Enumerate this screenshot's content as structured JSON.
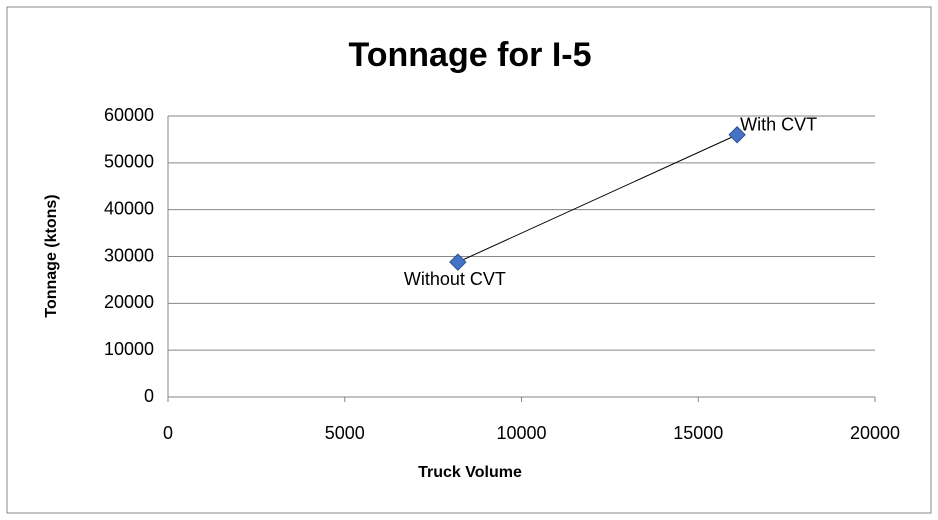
{
  "chart_data": {
    "type": "scatter",
    "title": "Tonnage for I-5",
    "xlabel": "Truck Volume",
    "ylabel": "Tonnage (ktons)",
    "x": [
      8200,
      16100
    ],
    "values": [
      28800,
      56000
    ],
    "point_labels": [
      "Without CVT",
      "With CVT"
    ],
    "color": "#4472c4",
    "line_color": "#000000",
    "xlim": [
      0,
      20000
    ],
    "ylim": [
      0,
      60000
    ],
    "xticks": [
      0,
      5000,
      10000,
      15000,
      20000
    ],
    "yticks": [
      0,
      10000,
      20000,
      30000,
      40000,
      50000,
      60000
    ],
    "grid": true
  }
}
